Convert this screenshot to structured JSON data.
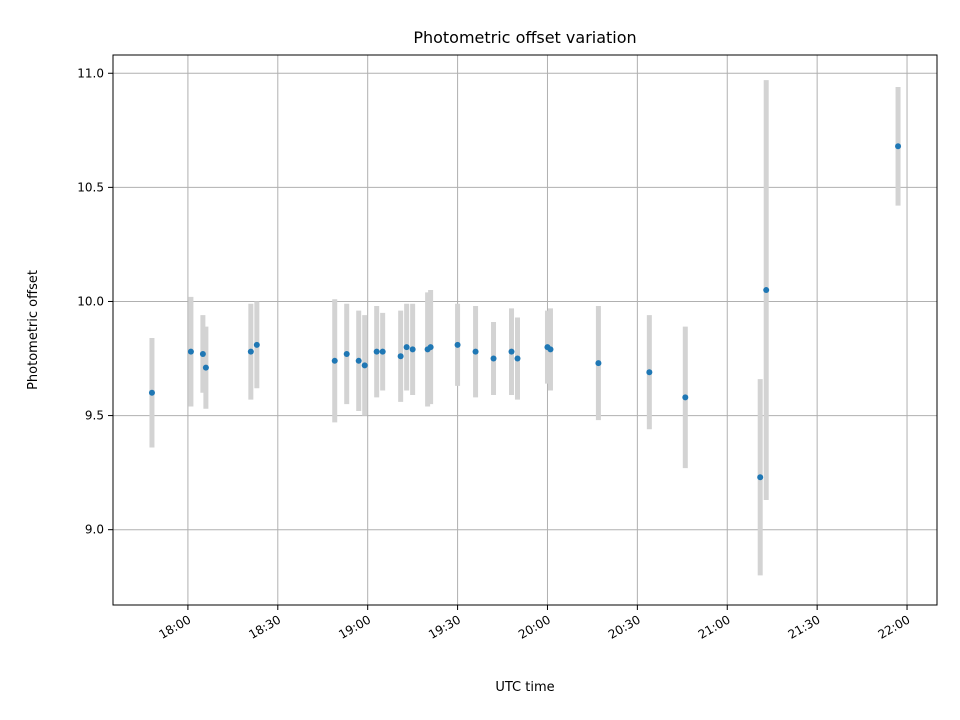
{
  "chart_data": {
    "type": "scatter",
    "title": "Photometric offset variation",
    "xlabel": "UTC time",
    "ylabel": "Photometric offset",
    "xlim": [
      "17:35",
      "22:10"
    ],
    "ylim": [
      8.67,
      11.08
    ],
    "x_ticks": [
      "18:00",
      "18:30",
      "19:00",
      "19:30",
      "20:00",
      "20:30",
      "21:00",
      "21:30",
      "22:00"
    ],
    "y_ticks": [
      "9.0",
      "9.5",
      "10.0",
      "10.5",
      "11.0"
    ],
    "grid": true,
    "colors": {
      "marker": "#1f77b4",
      "errorbar": "#d3d3d3",
      "grid": "#b0b0b0"
    },
    "series": [
      {
        "points": [
          {
            "x": "17:48",
            "y": 9.6,
            "err": 0.24
          },
          {
            "x": "18:01",
            "y": 9.78,
            "err": 0.24
          },
          {
            "x": "18:05",
            "y": 9.77,
            "err": 0.17
          },
          {
            "x": "18:06",
            "y": 9.71,
            "err": 0.18
          },
          {
            "x": "18:21",
            "y": 9.78,
            "err": 0.21
          },
          {
            "x": "18:23",
            "y": 9.81,
            "err": 0.19
          },
          {
            "x": "18:49",
            "y": 9.74,
            "err": 0.27
          },
          {
            "x": "18:53",
            "y": 9.77,
            "err": 0.22
          },
          {
            "x": "18:57",
            "y": 9.74,
            "err": 0.22
          },
          {
            "x": "18:59",
            "y": 9.72,
            "err": 0.22
          },
          {
            "x": "19:03",
            "y": 9.78,
            "err": 0.2
          },
          {
            "x": "19:05",
            "y": 9.78,
            "err": 0.17
          },
          {
            "x": "19:11",
            "y": 9.76,
            "err": 0.2
          },
          {
            "x": "19:13",
            "y": 9.8,
            "err": 0.19
          },
          {
            "x": "19:15",
            "y": 9.79,
            "err": 0.2
          },
          {
            "x": "19:20",
            "y": 9.79,
            "err": 0.25
          },
          {
            "x": "19:21",
            "y": 9.8,
            "err": 0.25
          },
          {
            "x": "19:30",
            "y": 9.81,
            "err": 0.18
          },
          {
            "x": "19:36",
            "y": 9.78,
            "err": 0.2
          },
          {
            "x": "19:42",
            "y": 9.75,
            "err": 0.16
          },
          {
            "x": "19:48",
            "y": 9.78,
            "err": 0.19
          },
          {
            "x": "19:50",
            "y": 9.75,
            "err": 0.18
          },
          {
            "x": "20:00",
            "y": 9.8,
            "err": 0.16
          },
          {
            "x": "20:01",
            "y": 9.79,
            "err": 0.18
          },
          {
            "x": "20:17",
            "y": 9.73,
            "err": 0.25
          },
          {
            "x": "20:34",
            "y": 9.69,
            "err": 0.25
          },
          {
            "x": "20:46",
            "y": 9.58,
            "err": 0.31
          },
          {
            "x": "21:11",
            "y": 9.23,
            "err": 0.43
          },
          {
            "x": "21:13",
            "y": 10.05,
            "err": 0.92
          },
          {
            "x": "21:57",
            "y": 10.68,
            "err": 0.26
          }
        ]
      }
    ]
  }
}
